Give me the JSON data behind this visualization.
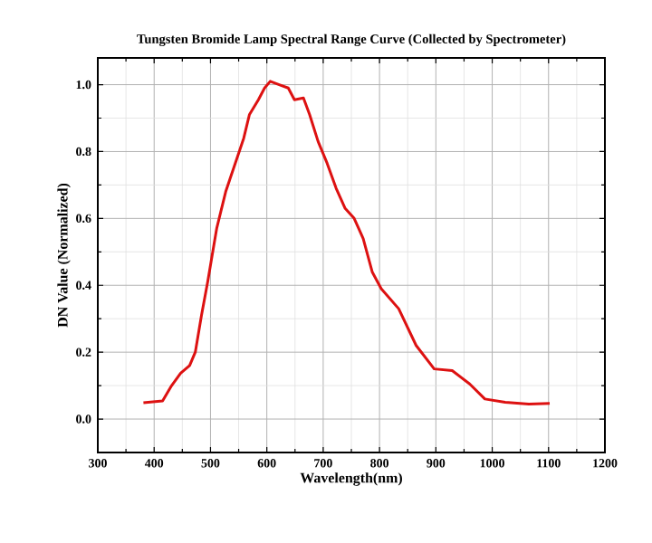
{
  "chart_data": {
    "type": "line",
    "title": "Tungsten Bromide Lamp Spectral Range Curve (Collected by Spectrometer)",
    "xlabel": "Wavelength(nm)",
    "ylabel": "DN Value (Normalized)",
    "xlim": [
      300,
      1200
    ],
    "xticks": [
      300,
      400,
      500,
      600,
      700,
      800,
      900,
      1000,
      1100,
      1200
    ],
    "ylim": [
      -0.1,
      1.08
    ],
    "yticks": [
      {
        "value": 0,
        "label": "0.0"
      },
      {
        "value": 0.2,
        "label": "0.2"
      },
      {
        "value": 0.4,
        "label": "0.4"
      },
      {
        "value": 0.6,
        "label": "0.6"
      },
      {
        "value": 0.8,
        "label": "0.8"
      },
      {
        "value": 1.0,
        "label": "1.0"
      }
    ],
    "grid": true,
    "marker": "none",
    "line_style": "solid",
    "series": [
      {
        "color": "#dd1111",
        "x": [
          381,
          415,
          431,
          447,
          463,
          473,
          484,
          495,
          511,
          527,
          543,
          559,
          569,
          585,
          596,
          606,
          622,
          638,
          649,
          665,
          676,
          691,
          707,
          723,
          739,
          755,
          771,
          787,
          803,
          834,
          865,
          897,
          929,
          960,
          987,
          1023,
          1065,
          1102
        ],
        "values": [
          0.049,
          0.054,
          0.1,
          0.137,
          0.16,
          0.2,
          0.31,
          0.41,
          0.57,
          0.68,
          0.76,
          0.84,
          0.91,
          0.955,
          0.99,
          1.01,
          1.0,
          0.99,
          0.955,
          0.96,
          0.91,
          0.83,
          0.765,
          0.69,
          0.63,
          0.6,
          0.54,
          0.44,
          0.39,
          0.33,
          0.22,
          0.15,
          0.145,
          0.105,
          0.06,
          0.05,
          0.045,
          0.047
        ]
      }
    ]
  }
}
